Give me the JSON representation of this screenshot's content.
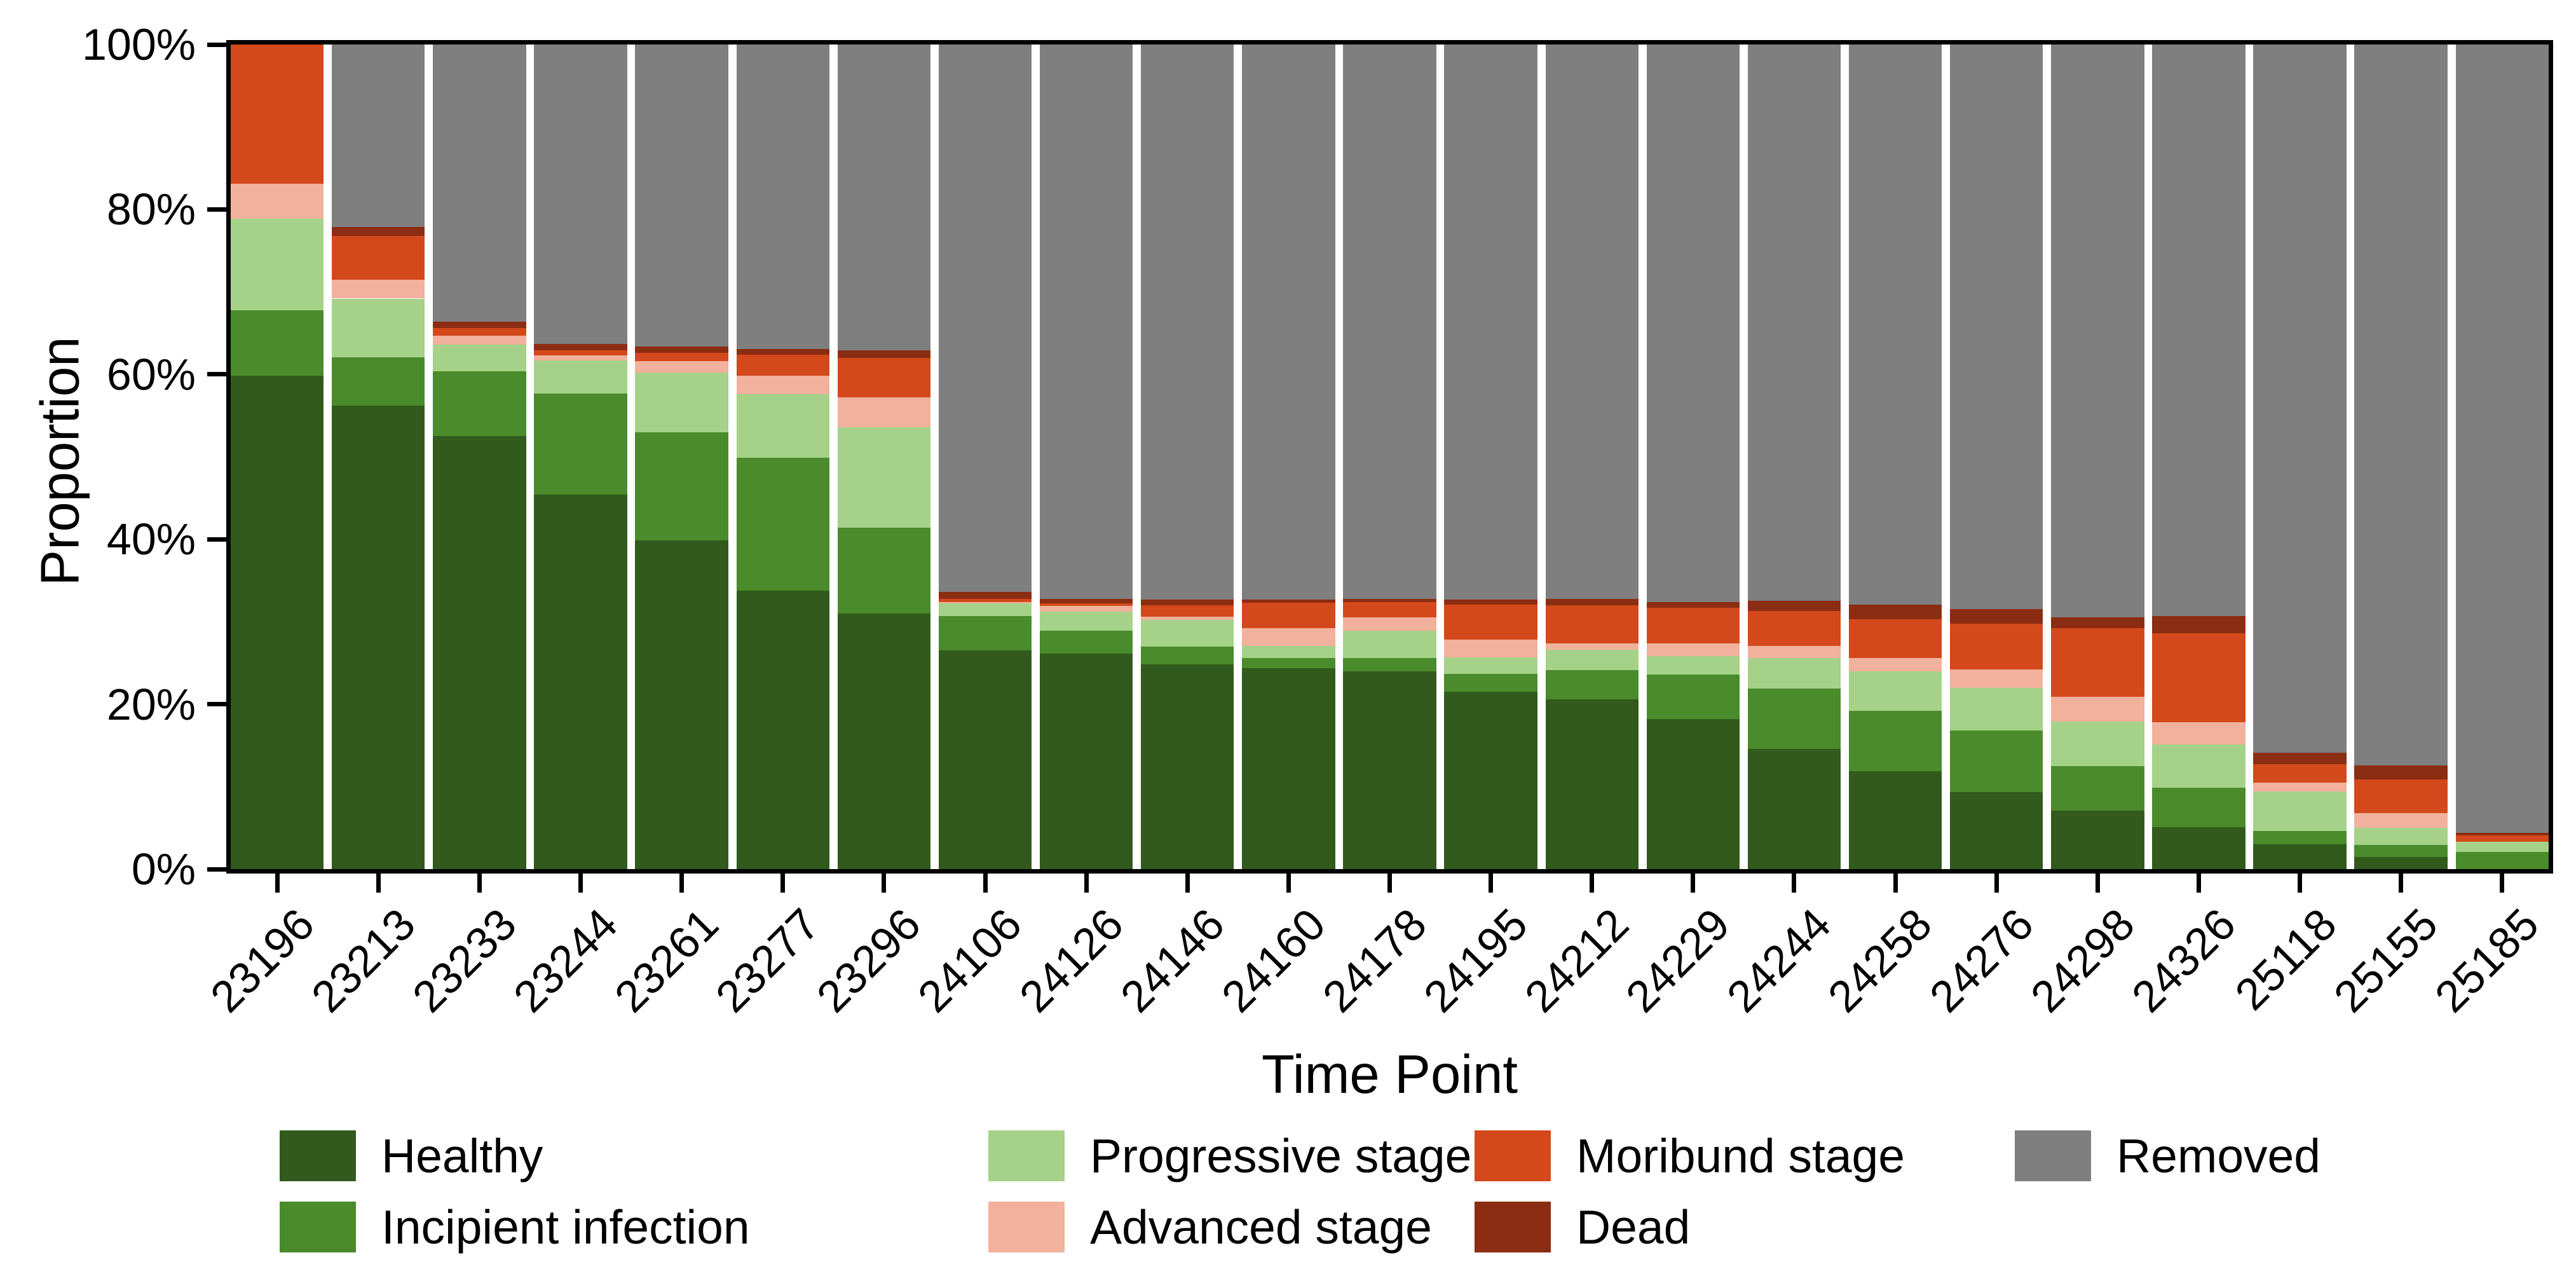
{
  "chart_data": {
    "type": "bar",
    "stacked": true,
    "orientation": "vertical",
    "title": "",
    "xlabel": "Time Point",
    "ylabel": "Proportion",
    "ylim": [
      0,
      100
    ],
    "yticks": [
      0,
      20,
      40,
      60,
      80,
      100
    ],
    "ytick_suffix": "%",
    "grid": false,
    "legend_position": "bottom",
    "categories": [
      "23196",
      "23213",
      "23233",
      "23244",
      "23261",
      "23277",
      "23296",
      "24106",
      "24126",
      "24146",
      "24160",
      "24178",
      "24195",
      "24212",
      "24229",
      "24244",
      "24258",
      "24276",
      "24298",
      "24326",
      "25118",
      "25155",
      "25185"
    ],
    "series": [
      {
        "name": "Healthy",
        "color": "#315A1C",
        "values": [
          59.8,
          56.2,
          52.5,
          45.4,
          39.9,
          33.8,
          31.0,
          26.5,
          26.1,
          24.8,
          24.4,
          24.0,
          21.5,
          20.6,
          18.2,
          14.6,
          11.9,
          9.3,
          7.1,
          5.1,
          3.0,
          1.5,
          0.0
        ]
      },
      {
        "name": "Incipient infection",
        "color": "#4A8B2C",
        "values": [
          8.0,
          5.9,
          7.9,
          12.3,
          13.1,
          16.1,
          10.4,
          4.2,
          2.8,
          2.2,
          1.2,
          1.6,
          2.2,
          3.5,
          5.4,
          7.3,
          7.3,
          7.5,
          5.4,
          4.8,
          1.6,
          1.4,
          2.1
        ]
      },
      {
        "name": "Progressive stage",
        "color": "#A5D288",
        "values": [
          11.1,
          7.1,
          3.2,
          4.0,
          7.2,
          7.7,
          12.2,
          1.5,
          2.3,
          3.2,
          1.5,
          3.3,
          2.0,
          2.5,
          2.2,
          3.7,
          4.8,
          5.2,
          5.4,
          5.2,
          4.8,
          2.1,
          1.2
        ]
      },
      {
        "name": "Advanced stage",
        "color": "#F2B19D",
        "values": [
          4.2,
          2.3,
          1.1,
          0.6,
          1.4,
          2.2,
          3.6,
          0.2,
          0.7,
          0.4,
          2.1,
          1.6,
          2.1,
          0.8,
          1.6,
          1.5,
          1.6,
          2.2,
          3.0,
          2.7,
          1.1,
          1.8,
          0.0
        ]
      },
      {
        "name": "Moribund stage",
        "color": "#D3491B",
        "values": [
          16.9,
          5.3,
          0.9,
          0.6,
          1.0,
          2.6,
          4.8,
          0.4,
          0.3,
          1.4,
          3.1,
          1.9,
          4.3,
          4.6,
          4.3,
          4.2,
          4.7,
          5.6,
          8.3,
          10.8,
          2.2,
          4.1,
          0.8
        ]
      },
      {
        "name": "Dead",
        "color": "#8B2D12",
        "values": [
          0.0,
          1.1,
          0.8,
          0.8,
          0.8,
          0.7,
          0.9,
          0.8,
          0.6,
          0.7,
          0.4,
          0.4,
          0.6,
          0.8,
          0.7,
          1.2,
          1.8,
          1.7,
          1.3,
          2.1,
          1.4,
          1.7,
          0.3
        ]
      },
      {
        "name": "Removed",
        "color": "#7F7F7F",
        "values": [
          0.0,
          22.1,
          33.6,
          36.3,
          36.6,
          36.9,
          37.1,
          66.4,
          67.2,
          67.3,
          67.3,
          67.2,
          67.3,
          67.2,
          67.6,
          67.5,
          67.9,
          68.5,
          69.5,
          69.3,
          85.9,
          87.4,
          95.6
        ]
      }
    ],
    "legend_columns": [
      [
        "Healthy",
        "Incipient infection"
      ],
      [
        "Progressive stage",
        "Advanced stage"
      ],
      [
        "Moribund stage",
        "Dead"
      ],
      [
        "Removed"
      ]
    ]
  }
}
